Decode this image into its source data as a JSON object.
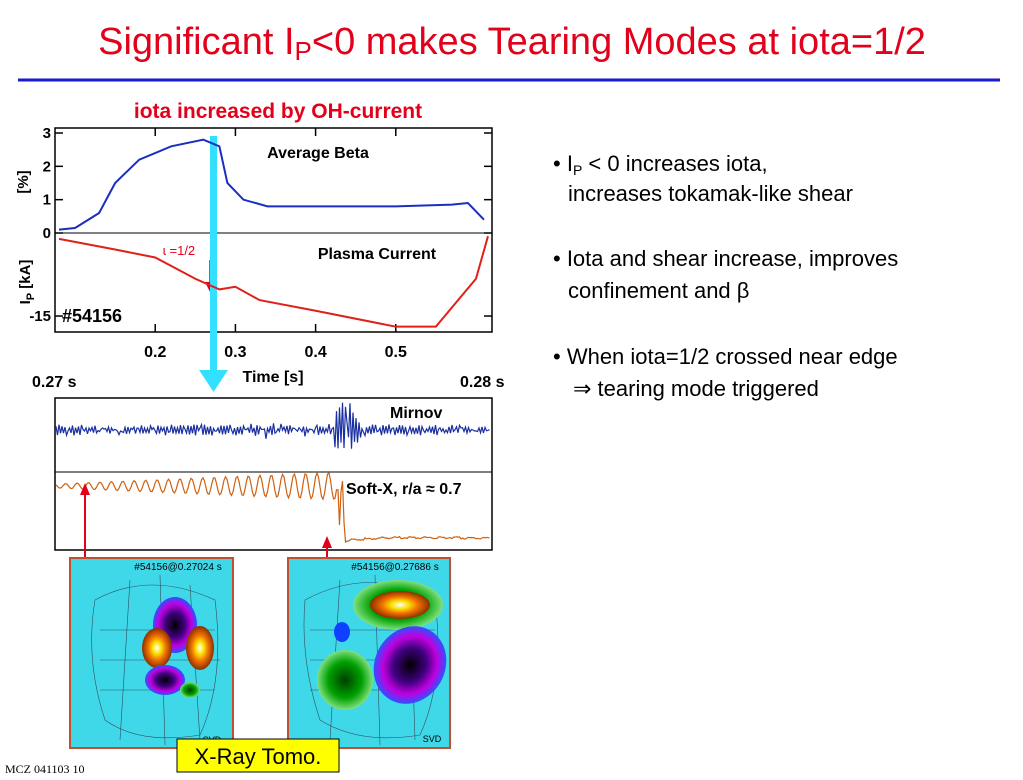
{
  "title": {
    "lead": "Significant I",
    "sub": "P",
    "rest": "<0 makes Tearing Modes at iota=1/2"
  },
  "plot": {
    "heading": "iota increased by OH-current",
    "xlim": [
      0.075,
      0.62
    ],
    "xticks": [
      0.2,
      0.3,
      0.4,
      0.5
    ],
    "xlabel": "Time [s]",
    "beta": {
      "label": "Average Beta",
      "unit": "[%]",
      "color": "#1a2fc0",
      "ylim": [
        0,
        3.15
      ],
      "yticks": [
        0,
        1,
        2,
        3
      ],
      "x": [
        0.08,
        0.1,
        0.13,
        0.15,
        0.18,
        0.22,
        0.26,
        0.28,
        0.29,
        0.31,
        0.34,
        0.36,
        0.4,
        0.5,
        0.57,
        0.59,
        0.61
      ],
      "values": [
        0.1,
        0.15,
        0.6,
        1.5,
        2.2,
        2.6,
        2.8,
        2.6,
        1.5,
        1.0,
        0.8,
        0.8,
        0.8,
        0.8,
        0.85,
        0.9,
        0.4
      ]
    },
    "current": {
      "label": "Plasma Current",
      "unit_lead": "I",
      "unit_sub": "P",
      "unit_rest": " [kA]",
      "color": "#e0201a",
      "ylim": [
        -18,
        0.6
      ],
      "yticks": [
        -15
      ],
      "x": [
        0.08,
        0.15,
        0.2,
        0.25,
        0.28,
        0.3,
        0.33,
        0.4,
        0.5,
        0.55,
        0.6,
        0.615
      ],
      "values": [
        -0.5,
        -2.5,
        -4,
        -8,
        -10,
        -9.5,
        -12,
        -14,
        -17,
        -17,
        -8,
        0
      ]
    },
    "shot": "#54156",
    "iota_label": "ɩ =1/2"
  },
  "signals": {
    "start": "0.27 s",
    "end": "0.28 s",
    "mirnov": "Mirnov",
    "softx": "Soft-X, r/a ≈ 0.7"
  },
  "tomo": [
    {
      "caption": "#54156@0.27024 s",
      "tag": "SVD"
    },
    {
      "caption": "#54156@0.27686 s",
      "tag": "SVD"
    }
  ],
  "tomo_label": "X-Ray Tomo.",
  "bullets": [
    {
      "lead": "• I",
      "sub": "P",
      "rest": " < 0 increases iota,",
      "line2": "increases tokamak-like shear"
    },
    {
      "lead": "• Iota and shear increase, improves",
      "line2": "confinement and β"
    },
    {
      "lead": "•  When iota=1/2 crossed near edge",
      "line2": "⇒ tearing mode triggered"
    }
  ],
  "footer": "MCZ 041103  10"
}
